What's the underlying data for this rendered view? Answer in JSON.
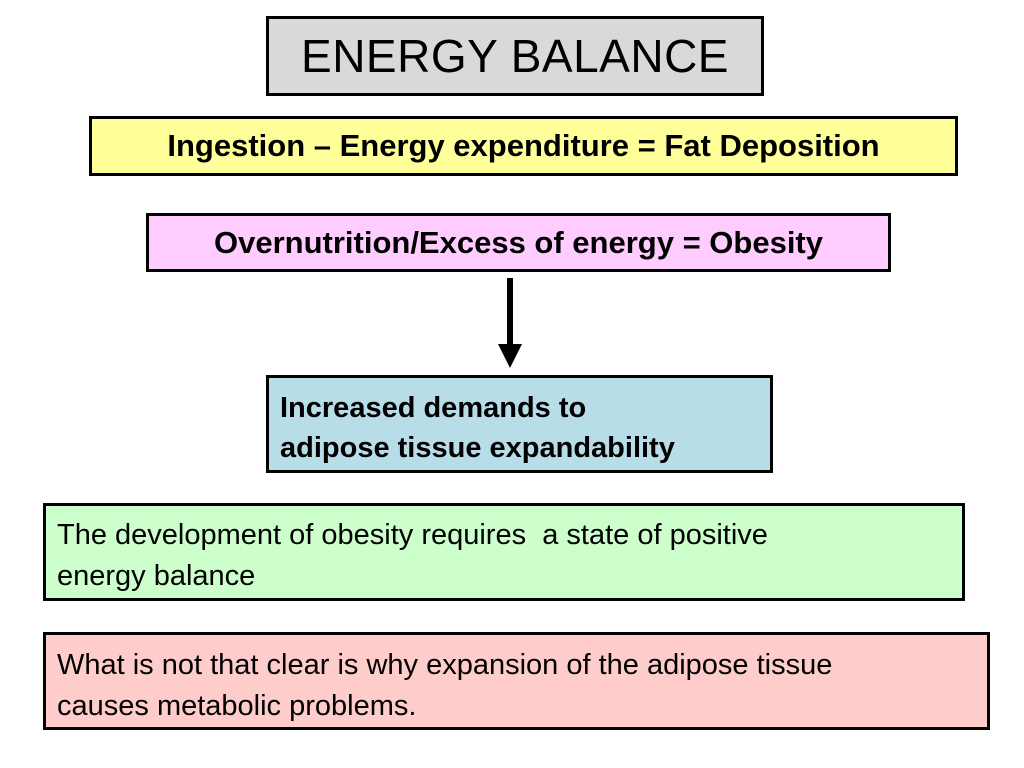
{
  "title": "ENERGY BALANCE",
  "formula": "Ingestion – Energy expenditure = Fat Deposition",
  "obesity": "Overnutrition/Excess of energy = Obesity",
  "demands": {
    "line1": "Increased demands to",
    "line2": "adipose tissue expandability"
  },
  "development": {
    "line1": "The development of obesity requires  a state of positive",
    "line2": "energy balance"
  },
  "problems": {
    "line1": "What is not that clear is why expansion of the adipose tissue",
    "line2": "causes metabolic problems."
  },
  "colors": {
    "title_bg": "#d9d9d9",
    "formula_bg": "#ffff99",
    "obesity_bg": "#ffccff",
    "demands_bg": "#b7dde8",
    "development_bg": "#ccffcc",
    "problems_bg": "#ffcccc"
  },
  "icons": {
    "flow_arrow": "arrow-down-icon"
  }
}
